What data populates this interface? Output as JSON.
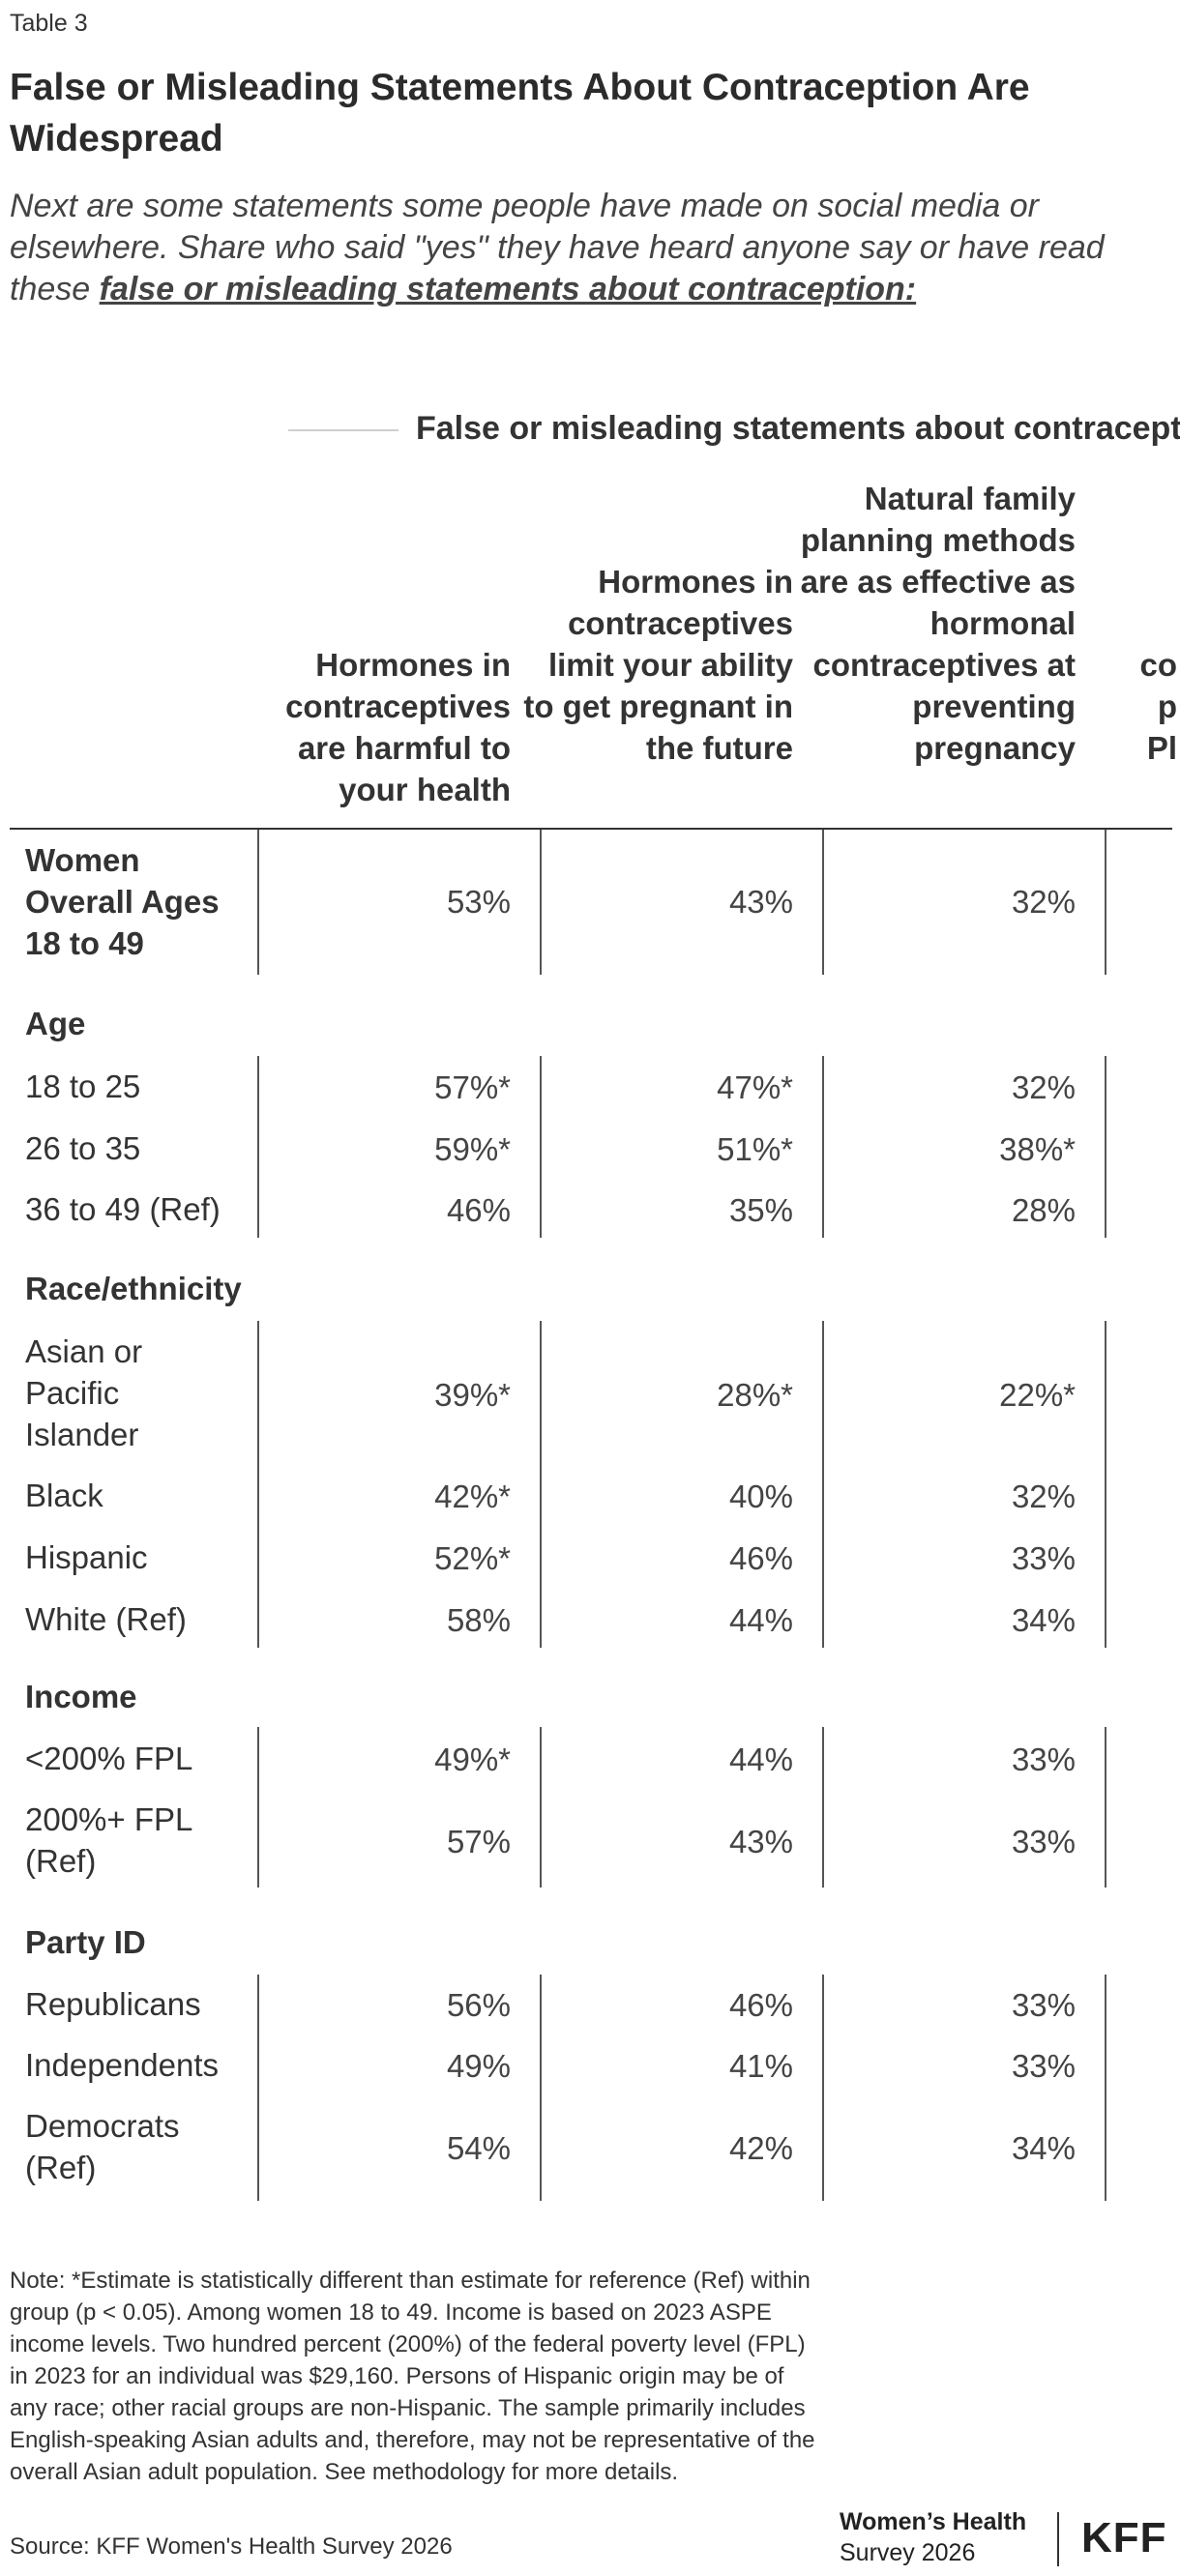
{
  "header": {
    "label": "Table 3",
    "title": "False or Misleading Statements About Contraception Are Widespread",
    "subtitle_prefix": "Next are some statements some people have made on social media or elsewhere. Share who said \"yes\" they have heard anyone say or have read these ",
    "subtitle_emphasis": "false or misleading statements about contraception:"
  },
  "table": {
    "group_label": "False or misleading statements about contraceptio",
    "columns": [
      "Hormones in contraceptives are harmful to your health",
      "Hormones in contraceptives limit your ability to get pregnant in the future",
      "Natural family planning methods are as effective as hormonal contraceptives at preventing pregnancy"
    ],
    "clipped_column_fragments": [
      "co",
      "p",
      "Pl"
    ],
    "overall": {
      "label": "Women Overall Ages 18 to 49",
      "values": [
        "53%",
        "43%",
        "32%"
      ]
    },
    "sections": [
      {
        "title": "Age",
        "rows": [
          {
            "label": "18 to 25",
            "values": [
              "57%*",
              "47%*",
              "32%"
            ]
          },
          {
            "label": "26 to 35",
            "values": [
              "59%*",
              "51%*",
              "38%*"
            ]
          },
          {
            "label": "36 to 49 (Ref)",
            "values": [
              "46%",
              "35%",
              "28%"
            ]
          }
        ]
      },
      {
        "title": "Race/ethnicity",
        "rows": [
          {
            "label": "Asian or Pacific Islander",
            "values": [
              "39%*",
              "28%*",
              "22%*"
            ]
          },
          {
            "label": "Black",
            "values": [
              "42%*",
              "40%",
              "32%"
            ]
          },
          {
            "label": "Hispanic",
            "values": [
              "52%*",
              "46%",
              "33%"
            ]
          },
          {
            "label": "White (Ref)",
            "values": [
              "58%",
              "44%",
              "34%"
            ]
          }
        ]
      },
      {
        "title": "Income",
        "rows": [
          {
            "label": "<200% FPL",
            "values": [
              "49%*",
              "44%",
              "33%"
            ]
          },
          {
            "label": "200%+ FPL (Ref)",
            "values": [
              "57%",
              "43%",
              "33%"
            ]
          }
        ]
      },
      {
        "title": "Party ID",
        "rows": [
          {
            "label": "Republicans",
            "values": [
              "56%",
              "46%",
              "33%"
            ]
          },
          {
            "label": "Independents",
            "values": [
              "49%",
              "41%",
              "33%"
            ]
          },
          {
            "label": "Democrats (Ref)",
            "values": [
              "54%",
              "42%",
              "34%"
            ]
          }
        ]
      }
    ]
  },
  "footer": {
    "note": "Note: *Estimate is statistically different than estimate for reference (Ref) within group (p < 0.05). Among women 18 to 49. Income is based on 2023 ASPE income levels. Two hundred percent (200%) of the federal poverty level (FPL) in 2023 for an individual was $29,160. Persons of Hispanic origin may be of any race; other racial groups are non-Hispanic. The sample primarily includes English-speaking Asian adults and, therefore, may not be representative of the overall Asian adult population. See methodology for more details.",
    "source": "Source: KFF Women's Health Survey 2026",
    "logo_line1": "Women’s Health",
    "logo_line2": "Survey 2026",
    "logo_brand": "KFF"
  }
}
